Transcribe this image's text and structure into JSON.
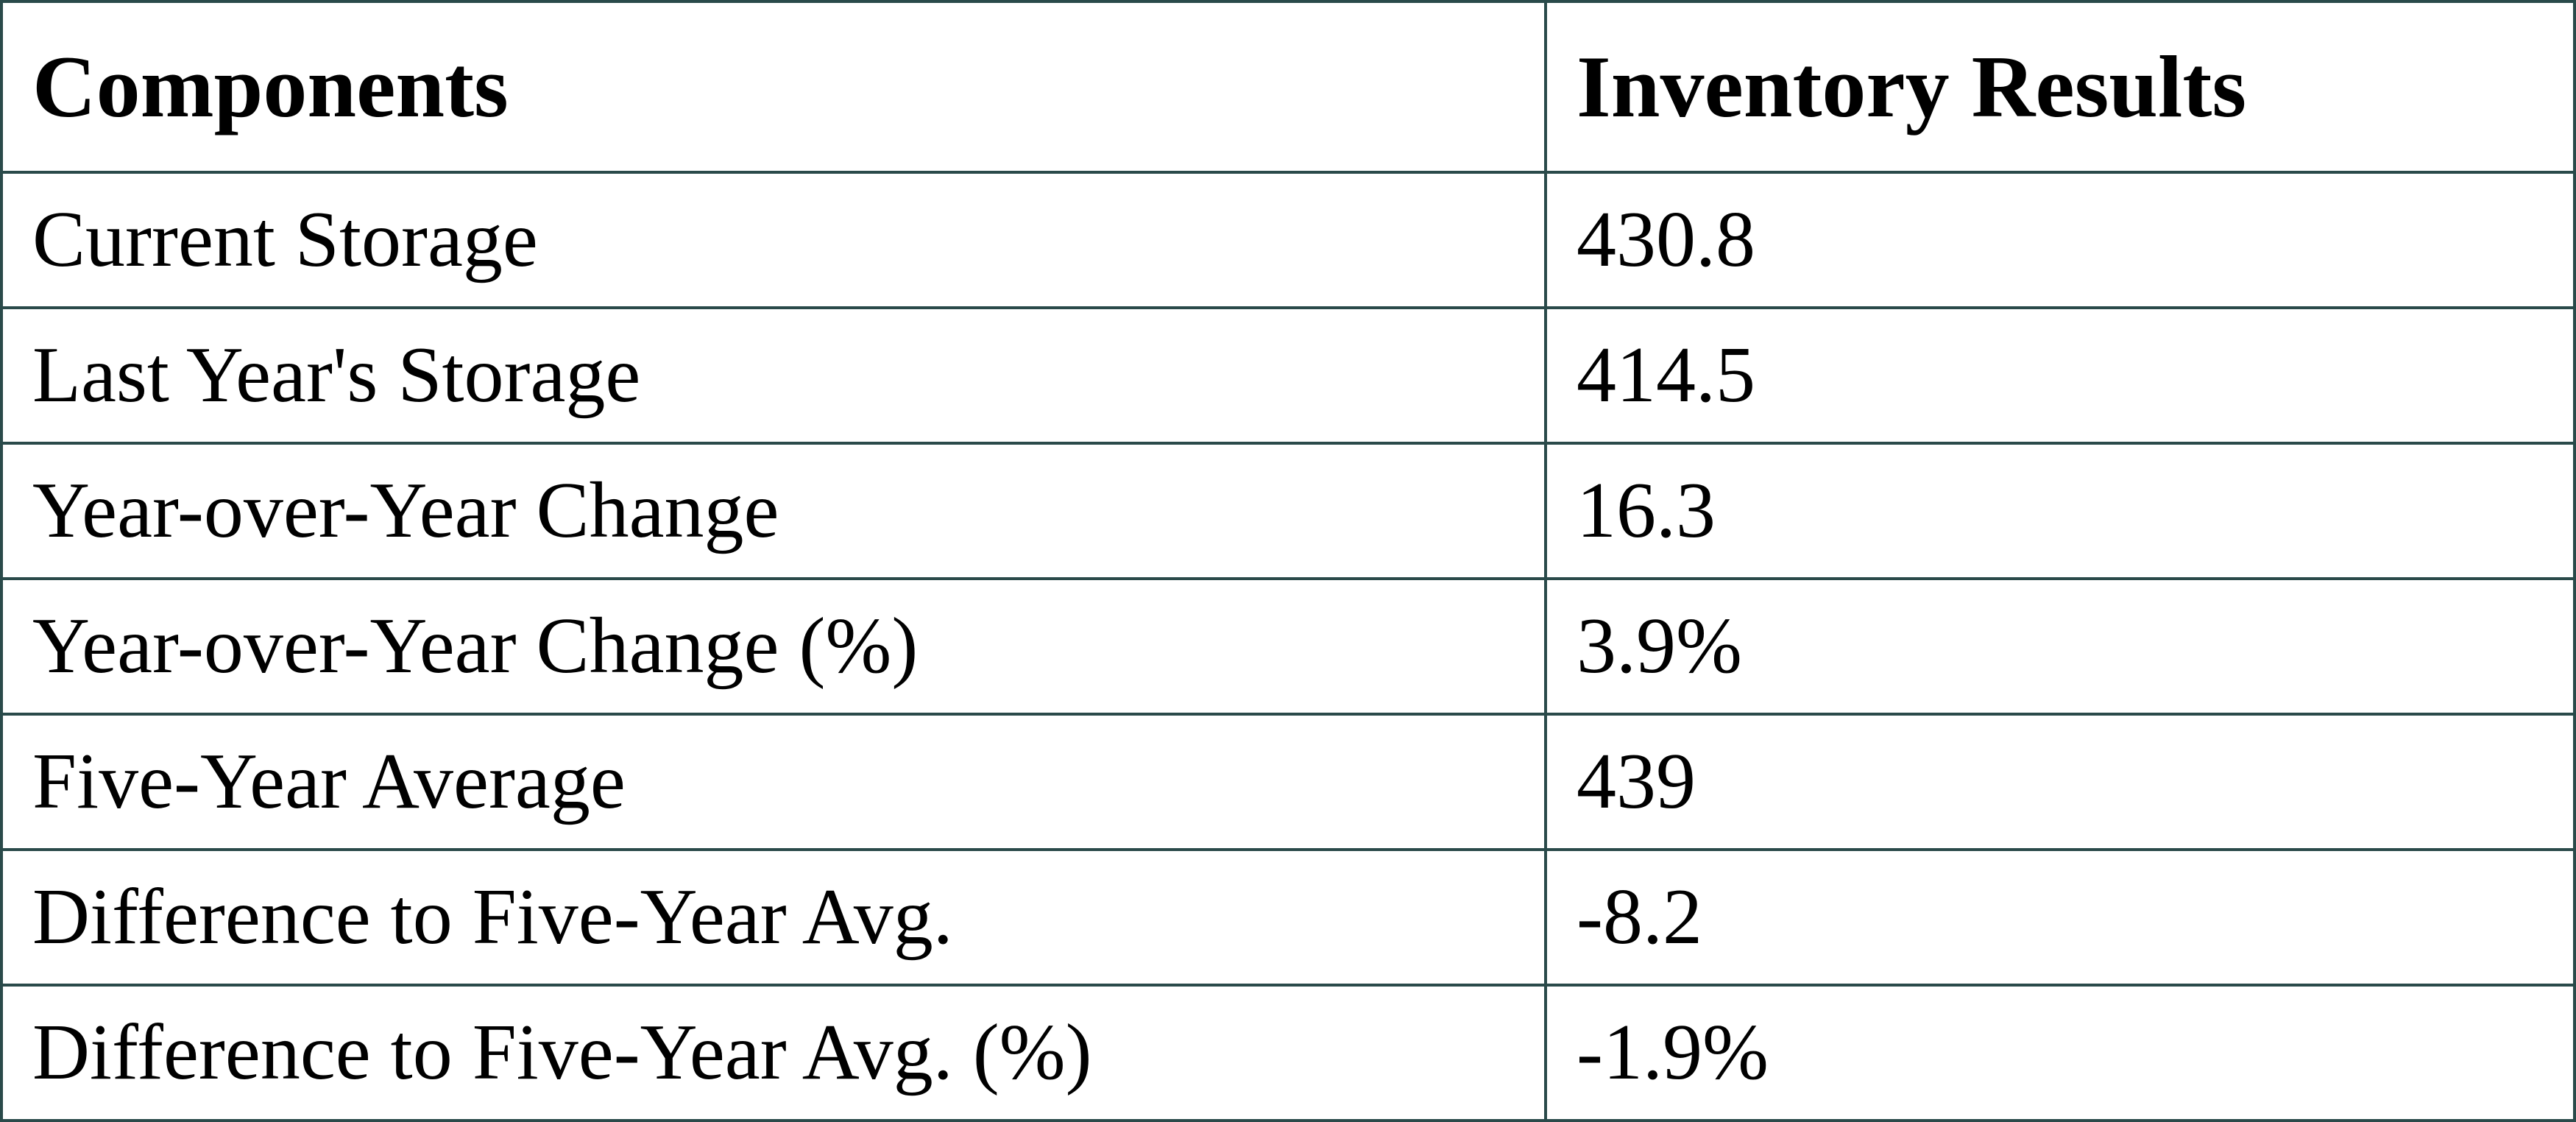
{
  "table": {
    "header": [
      "Components",
      "Inventory Results"
    ],
    "rows": [
      [
        "Current Storage",
        "430.8"
      ],
      [
        "Last Year's Storage",
        "414.5"
      ],
      [
        "Year-over-Year Change",
        "16.3"
      ],
      [
        "Year-over-Year Change (%)",
        "3.9%"
      ],
      [
        "Five-Year Average",
        "439"
      ],
      [
        "Difference to Five-Year Avg.",
        "-8.2"
      ],
      [
        "Difference to Five-Year Avg. (%)",
        "-1.9%"
      ]
    ]
  }
}
